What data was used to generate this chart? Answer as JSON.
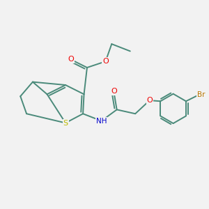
{
  "background_color": "#f2f2f2",
  "bond_color": "#4a8a7a",
  "atom_colors": {
    "O": "#ee0000",
    "N": "#0000cc",
    "S": "#bbbb00",
    "Br": "#bb7700",
    "C": "#4a8a7a"
  },
  "figsize": [
    3.0,
    3.0
  ],
  "dpi": 100
}
